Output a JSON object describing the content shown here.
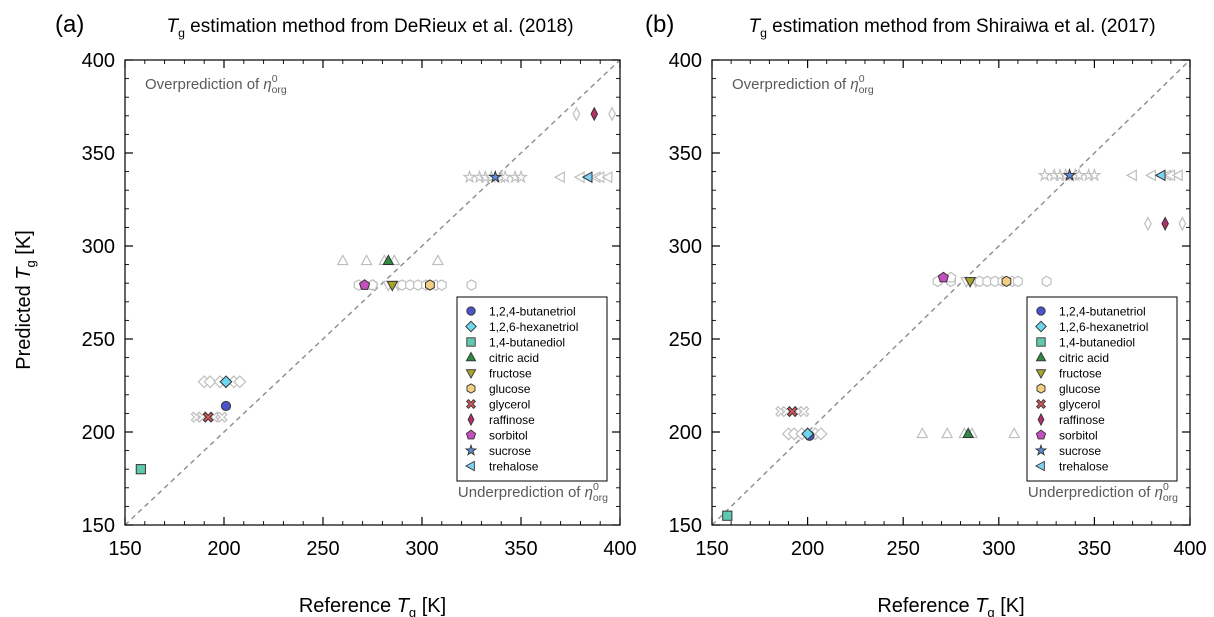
{
  "figure": {
    "ylabel": "Predicted T_g [K]",
    "xlabel": "Reference T_g [K]"
  },
  "chart_data": [
    {
      "type": "scatter",
      "panel_label": "(a)",
      "title": "T_g estimation method from DeRieux et al. (2018)",
      "xlabel": "Reference T_g [K]",
      "ylabel": "Predicted T_g [K]",
      "xlim": [
        150,
        400
      ],
      "ylim": [
        150,
        400
      ],
      "xticks": [
        150,
        200,
        250,
        300,
        350,
        400
      ],
      "yticks": [
        150,
        200,
        250,
        300,
        350,
        400
      ],
      "grid": false,
      "one_to_one_line": true,
      "annotations": [
        "Overprediction of η⁰org",
        "Underprediction of η⁰org"
      ],
      "legend_position": "lower-right",
      "series": [
        {
          "name": "1,2,4-butanetriol",
          "marker": "circle",
          "color": "#4b53c8",
          "points": [
            [
              201,
              214
            ]
          ],
          "grey_points": []
        },
        {
          "name": "1,2,6-hexanetriol",
          "marker": "diamond",
          "color": "#6ed6f0",
          "points": [
            [
              201,
              227
            ]
          ],
          "grey_points": [
            [
              190,
              227
            ],
            [
              193,
              227
            ],
            [
              198,
              227
            ],
            [
              205,
              227
            ],
            [
              208,
              227
            ]
          ]
        },
        {
          "name": "1,4-butanediol",
          "marker": "square",
          "color": "#5fc9b0",
          "points": [
            [
              158,
              180
            ]
          ],
          "grey_points": []
        },
        {
          "name": "citric acid",
          "marker": "triangle-up",
          "color": "#2e8b40",
          "points": [
            [
              283,
              292
            ]
          ],
          "grey_points": [
            [
              260,
              292
            ],
            [
              272,
              292
            ],
            [
              281,
              292
            ],
            [
              286,
              292
            ],
            [
              308,
              292
            ]
          ]
        },
        {
          "name": "fructose",
          "marker": "triangle-down",
          "color": "#a8a52a",
          "points": [
            [
              285,
              279
            ]
          ],
          "grey_points": [
            [
              283,
              279
            ],
            [
              288,
              279
            ]
          ]
        },
        {
          "name": "glucose",
          "marker": "hexagon",
          "color": "#f3cf82",
          "points": [
            [
              304,
              279
            ]
          ],
          "grey_points": [
            [
              268,
              279
            ],
            [
              275,
              279
            ],
            [
              290,
              279
            ],
            [
              294,
              279
            ],
            [
              298,
              279
            ],
            [
              302,
              279
            ],
            [
              307,
              279
            ],
            [
              310,
              279
            ],
            [
              325,
              279
            ]
          ]
        },
        {
          "name": "glycerol",
          "marker": "x",
          "color": "#e0585c",
          "points": [
            [
              192,
              208
            ]
          ],
          "grey_points": [
            [
              186,
              208
            ],
            [
              189,
              208
            ],
            [
              195,
              208
            ],
            [
              199,
              208
            ]
          ]
        },
        {
          "name": "raffinose",
          "marker": "thin-diamond",
          "color": "#b0306a",
          "points": [
            [
              387,
              371
            ]
          ],
          "grey_points": [
            [
              378,
              371
            ],
            [
              396,
              371
            ]
          ]
        },
        {
          "name": "sorbitol",
          "marker": "pentagon",
          "color": "#c64fc0",
          "points": [
            [
              271,
              279
            ]
          ],
          "grey_points": [
            [
              275,
              279
            ]
          ]
        },
        {
          "name": "sucrose",
          "marker": "star",
          "color": "#5a8ee3",
          "points": [
            [
              337,
              337
            ]
          ],
          "grey_points": [
            [
              324,
              337
            ],
            [
              329,
              337
            ],
            [
              332,
              337
            ],
            [
              335,
              337
            ],
            [
              340,
              337
            ],
            [
              342,
              337
            ],
            [
              347,
              337
            ],
            [
              350,
              337
            ]
          ]
        },
        {
          "name": "trehalose",
          "marker": "triangle-left",
          "color": "#7fd3f2",
          "points": [
            [
              384,
              337
            ]
          ],
          "grey_points": [
            [
              370,
              337
            ],
            [
              380,
              337
            ],
            [
              388,
              337
            ],
            [
              390,
              337
            ],
            [
              394,
              337
            ]
          ]
        }
      ]
    },
    {
      "type": "scatter",
      "panel_label": "(b)",
      "title": "T_g estimation method from Shiraiwa et al. (2017)",
      "xlabel": "Reference T_g [K]",
      "ylabel": "Predicted T_g [K]",
      "xlim": [
        150,
        400
      ],
      "ylim": [
        150,
        400
      ],
      "xticks": [
        150,
        200,
        250,
        300,
        350,
        400
      ],
      "yticks": [
        150,
        200,
        250,
        300,
        350,
        400
      ],
      "grid": false,
      "one_to_one_line": true,
      "annotations": [
        "Overprediction of η⁰org",
        "Underprediction of η⁰org"
      ],
      "legend_position": "lower-right",
      "series": [
        {
          "name": "1,2,4-butanetriol",
          "marker": "circle",
          "color": "#4b53c8",
          "points": [
            [
              201,
              198
            ]
          ],
          "grey_points": []
        },
        {
          "name": "1,2,6-hexanetriol",
          "marker": "diamond",
          "color": "#6ed6f0",
          "points": [
            [
              200,
              199
            ]
          ],
          "grey_points": [
            [
              190,
              199
            ],
            [
              193,
              199
            ],
            [
              197,
              199
            ],
            [
              204,
              199
            ],
            [
              207,
              199
            ]
          ]
        },
        {
          "name": "1,4-butanediol",
          "marker": "square",
          "color": "#5fc9b0",
          "points": [
            [
              158,
              155
            ]
          ],
          "grey_points": []
        },
        {
          "name": "citric acid",
          "marker": "triangle-up",
          "color": "#2e8b40",
          "points": [
            [
              284,
              199
            ]
          ],
          "grey_points": [
            [
              260,
              199
            ],
            [
              273,
              199
            ],
            [
              282,
              199
            ],
            [
              286,
              199
            ],
            [
              308,
              199
            ]
          ]
        },
        {
          "name": "fructose",
          "marker": "triangle-down",
          "color": "#a8a52a",
          "points": [
            [
              285,
              281
            ]
          ],
          "grey_points": [
            [
              283,
              281
            ],
            [
              288,
              281
            ]
          ]
        },
        {
          "name": "glucose",
          "marker": "hexagon",
          "color": "#f3cf82",
          "points": [
            [
              304,
              281
            ]
          ],
          "grey_points": [
            [
              268,
              281
            ],
            [
              275,
              281
            ],
            [
              290,
              281
            ],
            [
              294,
              281
            ],
            [
              298,
              281
            ],
            [
              302,
              281
            ],
            [
              307,
              281
            ],
            [
              310,
              281
            ],
            [
              325,
              281
            ]
          ]
        },
        {
          "name": "glycerol",
          "marker": "x",
          "color": "#e0585c",
          "points": [
            [
              192,
              211
            ]
          ],
          "grey_points": [
            [
              186,
              211
            ],
            [
              189,
              211
            ],
            [
              195,
              211
            ],
            [
              198,
              211
            ]
          ]
        },
        {
          "name": "raffinose",
          "marker": "thin-diamond",
          "color": "#b0306a",
          "points": [
            [
              387,
              312
            ]
          ],
          "grey_points": [
            [
              378,
              312
            ],
            [
              396,
              312
            ]
          ]
        },
        {
          "name": "sorbitol",
          "marker": "pentagon",
          "color": "#c64fc0",
          "points": [
            [
              271,
              283
            ]
          ],
          "grey_points": [
            [
              275,
              283
            ]
          ]
        },
        {
          "name": "sucrose",
          "marker": "star",
          "color": "#5a8ee3",
          "points": [
            [
              337,
              338
            ]
          ],
          "grey_points": [
            [
              324,
              338
            ],
            [
              329,
              338
            ],
            [
              332,
              338
            ],
            [
              335,
              338
            ],
            [
              340,
              338
            ],
            [
              342,
              338
            ],
            [
              347,
              338
            ],
            [
              350,
              338
            ]
          ]
        },
        {
          "name": "trehalose",
          "marker": "triangle-left",
          "color": "#7fd3f2",
          "points": [
            [
              385,
              338
            ]
          ],
          "grey_points": [
            [
              370,
              338
            ],
            [
              380,
              338
            ],
            [
              388,
              338
            ],
            [
              390,
              338
            ],
            [
              394,
              338
            ]
          ]
        }
      ]
    }
  ]
}
